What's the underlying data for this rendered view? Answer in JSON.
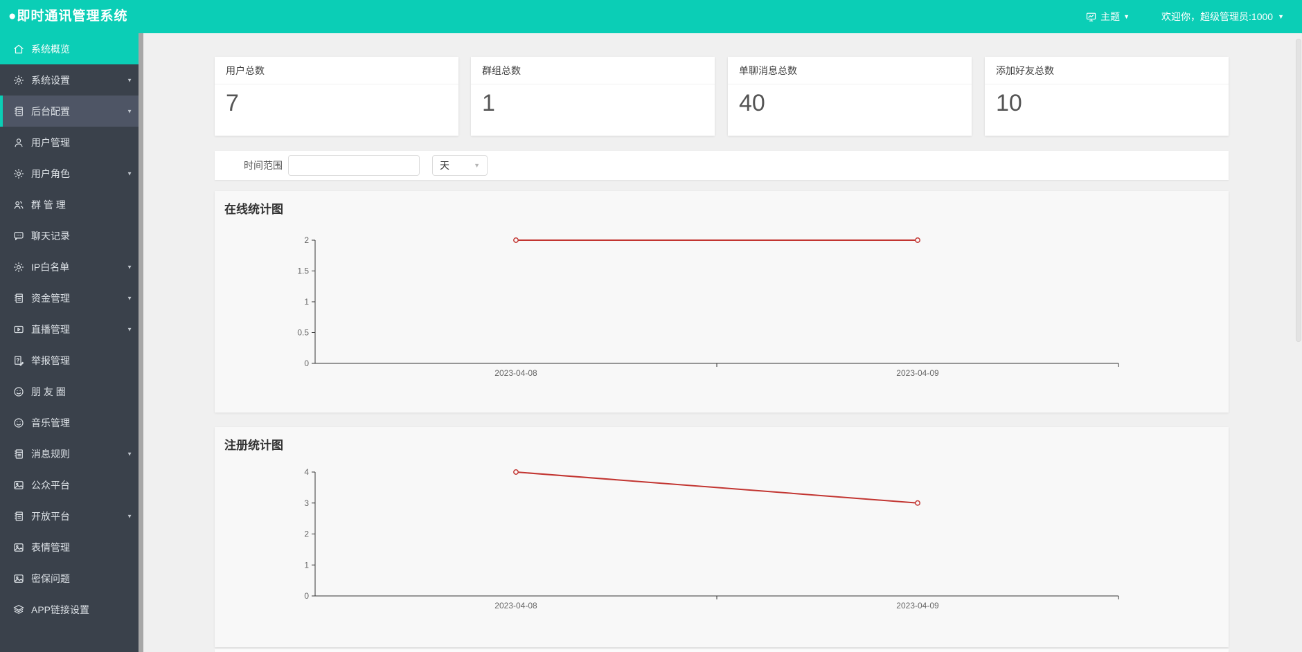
{
  "header": {
    "title": "●即时通讯管理系统",
    "theme_label": "主题",
    "welcome_text": "欢迎你，超级管理员:1000"
  },
  "sidebar": {
    "items": [
      {
        "label": "系统概览",
        "icon": "home-icon",
        "state": "active",
        "expandable": false
      },
      {
        "label": "系统设置",
        "icon": "gear-icon",
        "state": "normal",
        "expandable": true
      },
      {
        "label": "后台配置",
        "icon": "notebook-icon",
        "state": "selected",
        "expandable": true
      },
      {
        "label": "用户管理",
        "icon": "user-icon",
        "state": "normal",
        "expandable": false
      },
      {
        "label": "用户角色",
        "icon": "gear-icon",
        "state": "normal",
        "expandable": true
      },
      {
        "label": "群 管 理",
        "icon": "users-icon",
        "state": "normal",
        "expandable": false
      },
      {
        "label": "聊天记录",
        "icon": "chat-icon",
        "state": "normal",
        "expandable": false
      },
      {
        "label": "IP白名单",
        "icon": "gear-icon",
        "state": "normal",
        "expandable": true
      },
      {
        "label": "资金管理",
        "icon": "notebook-icon",
        "state": "normal",
        "expandable": true
      },
      {
        "label": "直播管理",
        "icon": "video-icon",
        "state": "normal",
        "expandable": true
      },
      {
        "label": "举报管理",
        "icon": "report-icon",
        "state": "normal",
        "expandable": false
      },
      {
        "label": "朋 友 圈",
        "icon": "smiley-icon",
        "state": "normal",
        "expandable": false
      },
      {
        "label": "音乐管理",
        "icon": "smiley-icon",
        "state": "normal",
        "expandable": false
      },
      {
        "label": "消息规则",
        "icon": "notebook-icon",
        "state": "normal",
        "expandable": true
      },
      {
        "label": "公众平台",
        "icon": "image-icon",
        "state": "normal",
        "expandable": false
      },
      {
        "label": "开放平台",
        "icon": "notebook-icon",
        "state": "normal",
        "expandable": true
      },
      {
        "label": "表情管理",
        "icon": "image-icon",
        "state": "normal",
        "expandable": false
      },
      {
        "label": "密保问题",
        "icon": "image-icon",
        "state": "normal",
        "expandable": false
      },
      {
        "label": "APP链接设置",
        "icon": "layers-icon",
        "state": "normal",
        "expandable": false
      }
    ]
  },
  "stats": [
    {
      "label": "用户总数",
      "value": "7"
    },
    {
      "label": "群组总数",
      "value": "1"
    },
    {
      "label": "单聊消息总数",
      "value": "40"
    },
    {
      "label": "添加好友总数",
      "value": "10"
    }
  ],
  "filter": {
    "label": "时间范围",
    "input_value": "",
    "input_placeholder": "",
    "select_value": "天"
  },
  "chart_data": [
    {
      "type": "line",
      "title": "在线统计图",
      "categories": [
        "2023-04-08",
        "2023-04-09"
      ],
      "series": [
        {
          "name": "在线",
          "values": [
            2,
            2
          ]
        }
      ],
      "xlabel": "",
      "ylabel": "",
      "ylim": [
        0,
        2
      ],
      "y_ticks": [
        0,
        0.5,
        1,
        1.5,
        2
      ],
      "y_tick_labels": [
        "0",
        "0.5",
        "1",
        "1.5",
        "2"
      ],
      "grid": false,
      "legend": false,
      "line_color": "#c23531",
      "marker": "hollow-circle"
    },
    {
      "type": "line",
      "title": "注册统计图",
      "categories": [
        "2023-04-08",
        "2023-04-09"
      ],
      "series": [
        {
          "name": "注册",
          "values": [
            4,
            3
          ]
        }
      ],
      "xlabel": "",
      "ylabel": "",
      "ylim": [
        0,
        4
      ],
      "y_ticks": [
        0,
        1,
        2,
        3,
        4
      ],
      "y_tick_labels": [
        "0",
        "1",
        "2",
        "3",
        "4"
      ],
      "grid": false,
      "legend": false,
      "line_color": "#c23531",
      "marker": "hollow-circle"
    }
  ],
  "colors": {
    "accent": "#0bceb6",
    "sidebar_bg": "#3a414b",
    "sidebar_selected_bg": "#4e5565",
    "chart_line": "#c23531",
    "page_bg": "#f0f0f0",
    "axis": "#333333"
  }
}
